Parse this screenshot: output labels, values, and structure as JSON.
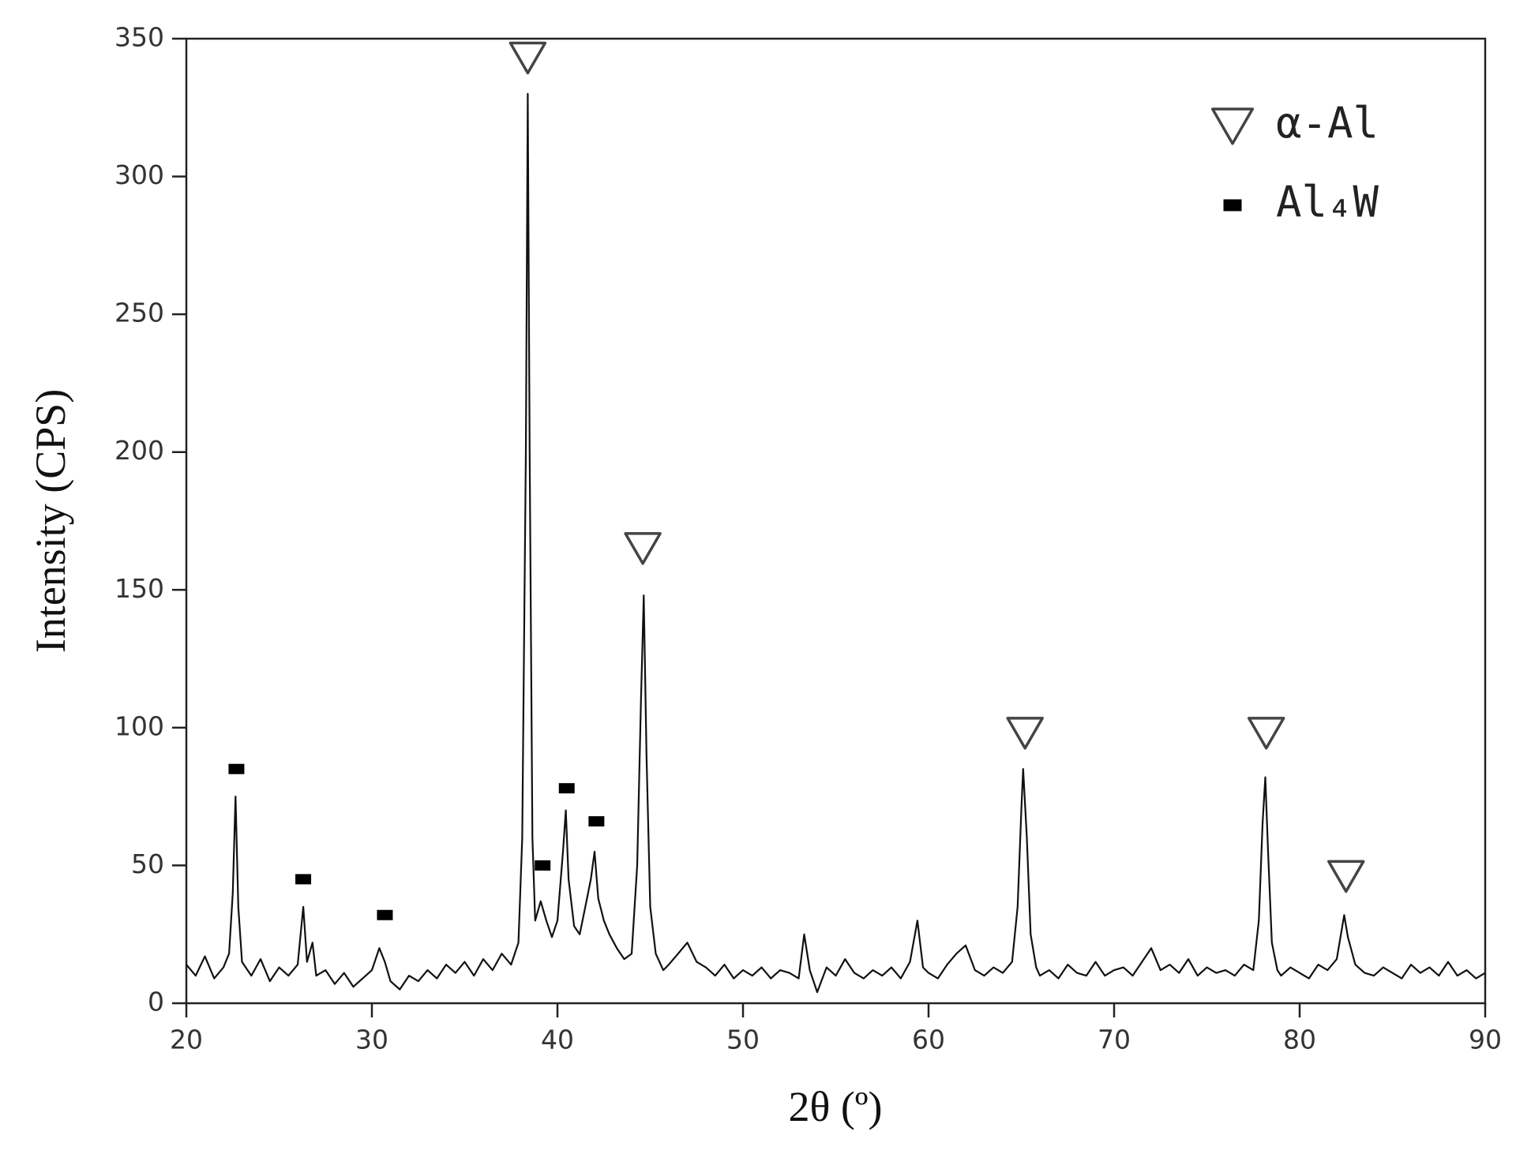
{
  "chart_data": {
    "type": "line",
    "xlabel": "2θ (º)",
    "ylabel": "Intensity (CPS)",
    "xlim": [
      20,
      90
    ],
    "xticks": [
      20,
      30,
      40,
      50,
      60,
      70,
      80,
      90
    ],
    "ylim": [
      0,
      350
    ],
    "yticks": [
      0,
      50,
      100,
      150,
      200,
      250,
      300,
      350
    ],
    "color": "#111111",
    "x": [
      20,
      20.5,
      21,
      21.5,
      22,
      22.3,
      22.5,
      22.65,
      22.8,
      23,
      23.5,
      24,
      24.5,
      25,
      25.5,
      26,
      26.3,
      26.5,
      26.8,
      27,
      27.5,
      28,
      28.5,
      29,
      29.5,
      30,
      30.4,
      30.7,
      31,
      31.5,
      32,
      32.5,
      33,
      33.5,
      34,
      34.5,
      35,
      35.5,
      36,
      36.5,
      37,
      37.5,
      37.9,
      38.1,
      38.3,
      38.4,
      38.5,
      38.65,
      38.8,
      39.1,
      39.4,
      39.7,
      40,
      40.3,
      40.45,
      40.6,
      40.9,
      41.2,
      41.5,
      41.8,
      42,
      42.2,
      42.5,
      42.8,
      43.2,
      43.6,
      44,
      44.3,
      44.5,
      44.65,
      44.8,
      45,
      45.3,
      45.7,
      46,
      46.5,
      47,
      47.5,
      48,
      48.5,
      49,
      49.5,
      50,
      50.5,
      51,
      51.5,
      52,
      52.5,
      53,
      53.3,
      53.6,
      54,
      54.5,
      55,
      55.5,
      56,
      56.5,
      57,
      57.5,
      58,
      58.5,
      59,
      59.4,
      59.7,
      60,
      60.5,
      61,
      61.5,
      62,
      62.5,
      63,
      63.5,
      64,
      64.5,
      64.8,
      65,
      65.1,
      65.3,
      65.5,
      65.8,
      66,
      66.5,
      67,
      67.5,
      68,
      68.5,
      69,
      69.5,
      70,
      70.5,
      71,
      71.5,
      72,
      72.5,
      73,
      73.5,
      74,
      74.5,
      75,
      75.5,
      76,
      76.5,
      77,
      77.5,
      77.8,
      78,
      78.15,
      78.3,
      78.5,
      78.8,
      79,
      79.5,
      80,
      80.5,
      81,
      81.5,
      82,
      82.4,
      82.6,
      83,
      83.5,
      84,
      84.5,
      85,
      85.5,
      86,
      86.5,
      87,
      87.5,
      88,
      88.5,
      89,
      89.5,
      90
    ],
    "values": [
      14,
      10,
      17,
      9,
      13,
      18,
      40,
      75,
      35,
      15,
      10,
      16,
      8,
      13,
      10,
      14,
      35,
      15,
      22,
      10,
      12,
      7,
      11,
      6,
      9,
      12,
      20,
      15,
      8,
      5,
      10,
      8,
      12,
      9,
      14,
      11,
      15,
      10,
      16,
      12,
      18,
      14,
      22,
      60,
      200,
      330,
      200,
      60,
      30,
      37,
      30,
      24,
      30,
      55,
      70,
      45,
      28,
      25,
      35,
      45,
      55,
      38,
      30,
      25,
      20,
      16,
      18,
      50,
      110,
      148,
      90,
      35,
      18,
      12,
      14,
      18,
      22,
      15,
      13,
      10,
      14,
      9,
      12,
      10,
      13,
      9,
      12,
      11,
      9,
      25,
      12,
      4,
      13,
      10,
      16,
      11,
      9,
      12,
      10,
      13,
      9,
      15,
      30,
      13,
      11,
      9,
      14,
      18,
      21,
      12,
      10,
      13,
      11,
      15,
      35,
      70,
      85,
      60,
      25,
      13,
      10,
      12,
      9,
      14,
      11,
      10,
      15,
      10,
      12,
      13,
      10,
      15,
      20,
      12,
      14,
      11,
      16,
      10,
      13,
      11,
      12,
      10,
      14,
      12,
      30,
      65,
      82,
      55,
      22,
      12,
      10,
      13,
      11,
      9,
      14,
      12,
      16,
      32,
      24,
      14,
      11,
      10,
      13,
      11,
      9,
      14,
      11,
      13,
      10,
      15,
      10,
      12,
      9,
      11
    ],
    "markers": [
      {
        "name": "α-Al",
        "symbol": "triangle",
        "x": [
          38.4,
          44.6,
          65.2,
          78.2,
          82.5
        ],
        "y": [
          343,
          165,
          98,
          98,
          46
        ]
      },
      {
        "name": "Al₄W",
        "symbol": "square",
        "x": [
          22.7,
          26.3,
          30.7,
          39.2,
          40.5,
          42.1
        ],
        "y": [
          85,
          45,
          32,
          50,
          78,
          66
        ]
      }
    ],
    "legend": "upper right"
  }
}
